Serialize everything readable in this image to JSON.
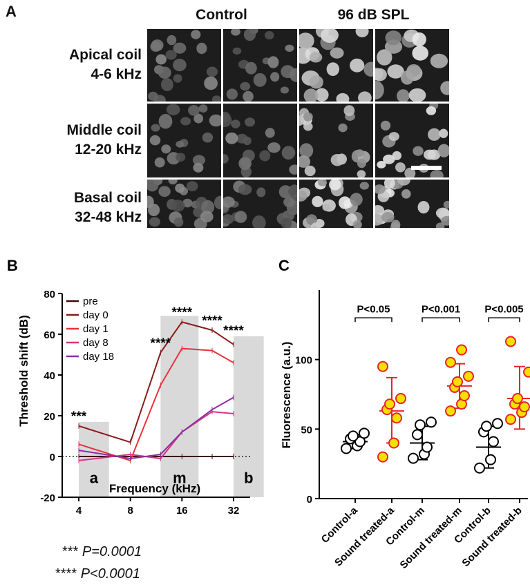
{
  "panel_a": {
    "letter": "A",
    "columns": [
      "Control",
      "96 dB SPL"
    ],
    "rows": [
      {
        "line1": "Apical coil",
        "line2": "4-6 kHz"
      },
      {
        "line1": "Middle coil",
        "line2": "12-20 kHz"
      },
      {
        "line1": "Basal coil",
        "line2": "32-48 kHz"
      }
    ]
  },
  "chart_data": [
    {
      "panel": "B",
      "type": "line",
      "xlabel": "Frequency (kHz)",
      "ylabel": "Threshold shift (dB)",
      "x": [
        4,
        8,
        12,
        16,
        24,
        32
      ],
      "xticks": [
        "4",
        "8",
        "16",
        "32"
      ],
      "xscale": "log2",
      "xlim": [
        3.2,
        40
      ],
      "ylim": [
        -20,
        80
      ],
      "yticks": [
        -20,
        0,
        20,
        40,
        60,
        80
      ],
      "zero_line": "dotted",
      "legend_position": "top-left",
      "series": [
        {
          "name": "pre",
          "color": "#3d0a0a",
          "values": [
            0,
            0,
            0,
            0,
            0,
            0
          ]
        },
        {
          "name": "day 0",
          "color": "#8b1a1a",
          "values": [
            15,
            7,
            51,
            66,
            62,
            55
          ]
        },
        {
          "name": "day 1",
          "color": "#e8323b",
          "values": [
            6,
            -2,
            35,
            53,
            52,
            46
          ]
        },
        {
          "name": "day 8",
          "color": "#d63384",
          "values": [
            -2,
            1,
            -1,
            12,
            22,
            21
          ]
        },
        {
          "name": "day 18",
          "color": "#8b2fa0",
          "values": [
            3,
            -1,
            1,
            12,
            23,
            29
          ]
        }
      ],
      "shaded_regions": [
        {
          "label": "a",
          "from": 4,
          "to": 6,
          "height": 17
        },
        {
          "label": "m",
          "from": 12,
          "to": 20,
          "height": 69
        },
        {
          "label": "b",
          "from": 32,
          "to": 48,
          "height": 59
        }
      ],
      "significance": [
        {
          "text": "***",
          "x": 4,
          "y": 19
        },
        {
          "text": "****",
          "x": 12,
          "y": 55
        },
        {
          "text": "****",
          "x": 16,
          "y": 70
        },
        {
          "text": "****",
          "x": 24,
          "y": 66
        },
        {
          "text": "****",
          "x": 32,
          "y": 61
        }
      ],
      "footnotes": [
        {
          "stars": "***",
          "p": "P=0.0001"
        },
        {
          "stars": "****",
          "p": "P<0.0001"
        }
      ]
    },
    {
      "panel": "C",
      "type": "scatter",
      "ylabel": "Fluorescence (a.u.)",
      "ylim": [
        0,
        150
      ],
      "yticks": [
        0,
        50,
        100
      ],
      "categories": [
        "Control-a",
        "Sound treated-a",
        "Control-m",
        "Sound treated-m",
        "Control-b",
        "Sound treated-b"
      ],
      "groups": [
        {
          "name": "Control-a",
          "style": "open",
          "color": "#000000",
          "points": [
            36,
            38,
            41,
            43,
            45,
            47
          ],
          "mean": 41,
          "sd_low": 36,
          "sd_high": 46
        },
        {
          "name": "Sound treated-a",
          "style": "filled",
          "color": "#e8232a",
          "points": [
            30,
            40,
            58,
            64,
            68,
            72,
            95
          ],
          "mean": 63,
          "sd_low": 40,
          "sd_high": 87
        },
        {
          "name": "Control-m",
          "style": "open",
          "color": "#000000",
          "points": [
            29,
            32,
            37,
            46,
            53,
            55
          ],
          "mean": 40,
          "sd_low": 28,
          "sd_high": 52
        },
        {
          "name": "Sound treated-m",
          "style": "filled",
          "color": "#e8232a",
          "points": [
            63,
            68,
            74,
            80,
            84,
            88,
            98,
            107
          ],
          "mean": 81,
          "sd_low": 65,
          "sd_high": 97
        },
        {
          "name": "Control-b",
          "style": "open",
          "color": "#000000",
          "points": [
            22,
            28,
            41,
            48,
            52,
            54
          ],
          "mean": 37,
          "sd_low": 22,
          "sd_high": 52
        },
        {
          "name": "Sound treated-b",
          "style": "filled",
          "color": "#e8232a",
          "points": [
            57,
            62,
            66,
            68,
            72,
            91,
            113
          ],
          "mean": 72,
          "sd_low": 50,
          "sd_high": 95
        }
      ],
      "comparisons": [
        {
          "from": "Control-a",
          "to": "Sound treated-a",
          "label": "P<0.05"
        },
        {
          "from": "Control-m",
          "to": "Sound treated-m",
          "label": "P<0.001"
        },
        {
          "from": "Control-b",
          "to": "Sound treated-b",
          "label": "P<0.005"
        }
      ]
    }
  ],
  "colors": {
    "shade": "#d9d9d9",
    "marker_fill": "#f7e000",
    "marker_edge": "#e8232a",
    "micro_bg": "#1d1d1d"
  }
}
